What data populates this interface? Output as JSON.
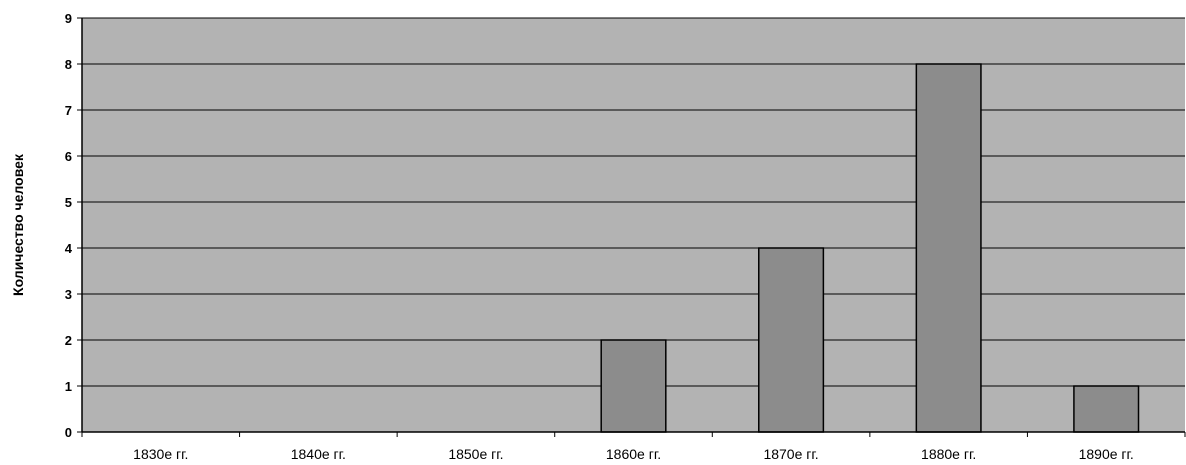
{
  "chart_data": {
    "type": "bar",
    "categories": [
      "1830е гг.",
      "1840е гг.",
      "1850е гг.",
      "1860е гг.",
      "1870е гг.",
      "1880е гг.",
      "1890е гг."
    ],
    "values": [
      0,
      0,
      0,
      2,
      4,
      8,
      1
    ],
    "xlabel": "",
    "ylabel": "Количество человек",
    "ylim": [
      0,
      9
    ],
    "yticks": [
      0,
      1,
      2,
      3,
      4,
      5,
      6,
      7,
      8,
      9
    ],
    "grid": true,
    "legend": "none",
    "colors": {
      "plot_background": "#b3b3b3",
      "bar_fill": "#8c8c8c",
      "bar_stroke": "#000000",
      "gridline": "#000000"
    }
  }
}
